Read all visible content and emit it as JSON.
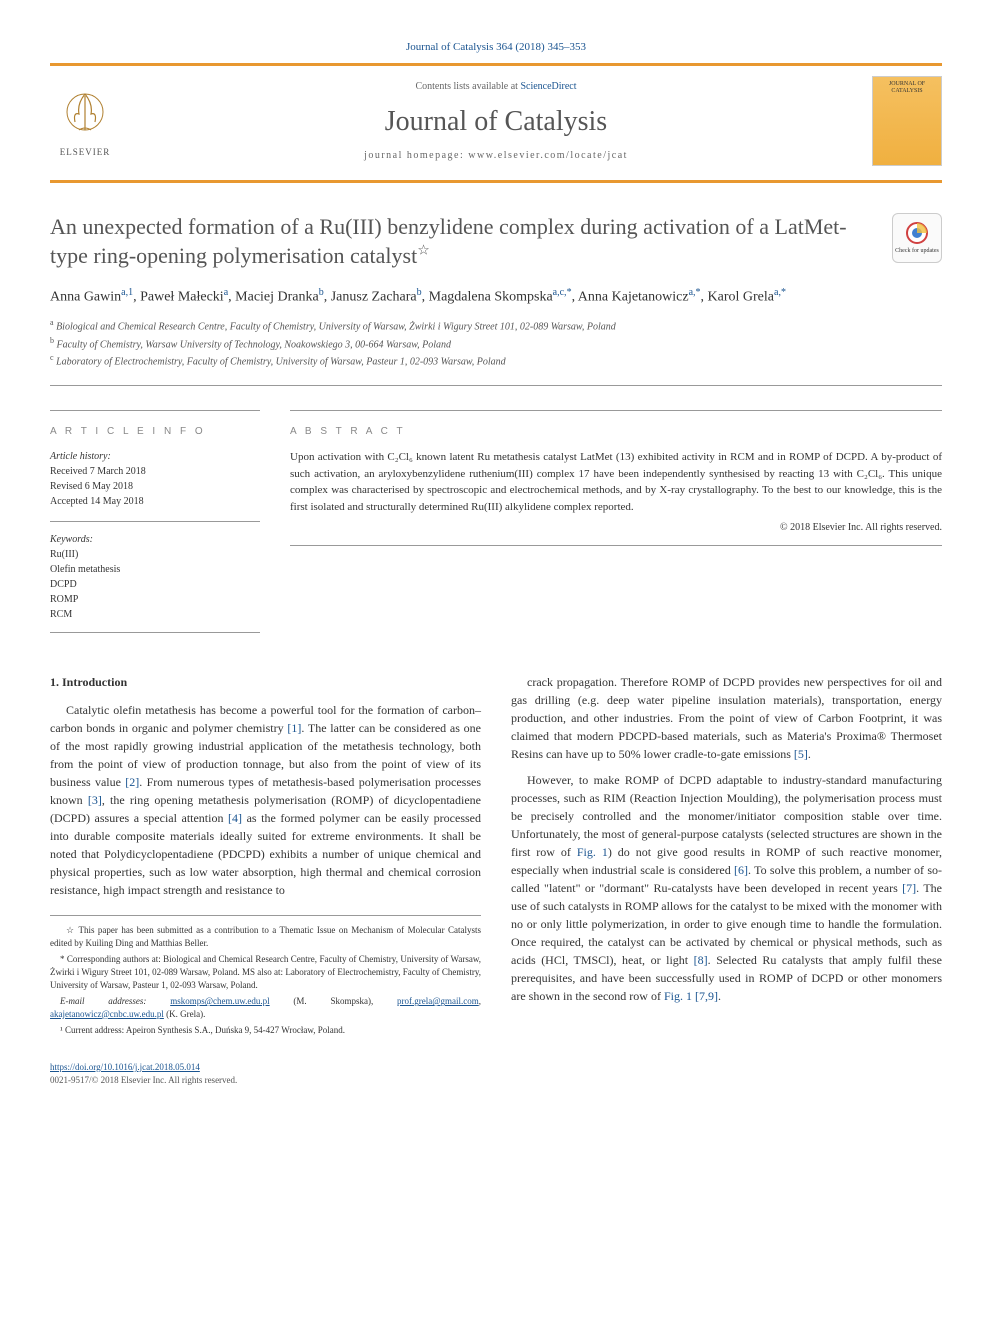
{
  "citation": "Journal of Catalysis 364 (2018) 345–353",
  "header": {
    "contents_prefix": "Contents lists available at ",
    "contents_link": "ScienceDirect",
    "journal_name": "Journal of Catalysis",
    "homepage_prefix": "journal homepage: ",
    "homepage_url": "www.elsevier.com/locate/jcat",
    "publisher": "ELSEVIER",
    "cover_label_top": "JOURNAL OF",
    "cover_label_bottom": "CATALYSIS"
  },
  "check_updates": "Check for updates",
  "title": "An unexpected formation of a Ru(III) benzylidene complex during activation of a LatMet-type ring-opening polymerisation catalyst",
  "title_star": "☆",
  "authors_html": "Anna Gawin<sup>a,1</sup>, Paweł Małecki<sup>a</sup>, Maciej Dranka<sup>b</sup>, Janusz Zachara<sup>b</sup>, Magdalena Skompska<sup>a,c,*</sup>, Anna Kajetanowicz<sup>a,*</sup>, Karol Grela<sup>a,*</sup>",
  "affiliations": [
    {
      "sup": "a",
      "text": "Biological and Chemical Research Centre, Faculty of Chemistry, University of Warsaw, Żwirki i Wigury Street 101, 02-089 Warsaw, Poland"
    },
    {
      "sup": "b",
      "text": "Faculty of Chemistry, Warsaw University of Technology, Noakowskiego 3, 00-664 Warsaw, Poland"
    },
    {
      "sup": "c",
      "text": "Laboratory of Electrochemistry, Faculty of Chemistry, University of Warsaw, Pasteur 1, 02-093 Warsaw, Poland"
    }
  ],
  "article_info": {
    "heading": "A R T I C L E   I N F O",
    "history_label": "Article history:",
    "history": [
      "Received 7 March 2018",
      "Revised 6 May 2018",
      "Accepted 14 May 2018"
    ],
    "keywords_label": "Keywords:",
    "keywords": [
      "Ru(III)",
      "Olefin metathesis",
      "DCPD",
      "ROMP",
      "RCM"
    ]
  },
  "abstract": {
    "heading": "A B S T R A C T",
    "text": "Upon activation with C₂Cl₆ known latent Ru metathesis catalyst LatMet (13) exhibited activity in RCM and in ROMP of DCPD. A by-product of such activation, an aryloxybenzylidene ruthenium(III) complex 17 have been independently synthesised by reacting 13 with C₂Cl₆. This unique complex was characterised by spectroscopic and electrochemical methods, and by X-ray crystallography. To the best to our knowledge, this is the first isolated and structurally determined Ru(III) alkylidene complex reported.",
    "copyright": "© 2018 Elsevier Inc. All rights reserved."
  },
  "section1": {
    "title": "1. Introduction",
    "p1": "Catalytic olefin metathesis has become a powerful tool for the formation of carbon–carbon bonds in organic and polymer chemistry [1]. The latter can be considered as one of the most rapidly growing industrial application of the metathesis technology, both from the point of view of production tonnage, but also from the point of view of its business value [2]. From numerous types of metathesis-based polymerisation processes known [3], the ring opening metathesis polymerisation (ROMP) of dicyclopentadiene (DCPD) assures a special attention [4] as the formed polymer can be easily processed into durable composite materials ideally suited for extreme environments. It shall be noted that Polydicyclopentadiene (PDCPD) exhibits a number of unique chemical and physical properties, such as low water absorption, high thermal and chemical corrosion resistance, high impact strength and resistance to",
    "p2": "crack propagation. Therefore ROMP of DCPD provides new perspectives for oil and gas drilling (e.g. deep water pipeline insulation materials), transportation, energy production, and other industries. From the point of view of Carbon Footprint, it was claimed that modern PDCPD-based materials, such as Materia's Proxima® Thermoset Resins can have up to 50% lower cradle-to-gate emissions [5].",
    "p3": "However, to make ROMP of DCPD adaptable to industry-standard manufacturing processes, such as RIM (Reaction Injection Moulding), the polymerisation process must be precisely controlled and the monomer/initiator composition stable over time. Unfortunately, the most of general-purpose catalysts (selected structures are shown in the first row of Fig. 1) do not give good results in ROMP of such reactive monomer, especially when industrial scale is considered [6]. To solve this problem, a number of so-called \"latent\" or \"dormant\" Ru-catalysts have been developed in recent years [7]. The use of such catalysts in ROMP allows for the catalyst to be mixed with the monomer with no or only little polymerization, in order to give enough time to handle the formulation. Once required, the catalyst can be activated by chemical or physical methods, such as acids (HCl, TMSCl), heat, or light [8]. Selected Ru catalysts that amply fulfil these prerequisites, and have been successfully used in ROMP of DCPD or other monomers are shown in the second row of Fig. 1 [7,9]."
  },
  "footnotes": {
    "star": "☆ This paper has been submitted as a contribution to a Thematic Issue on Mechanism of Molecular Catalysts edited by Kuiling Ding and Matthias Beller.",
    "corr": "* Corresponding authors at: Biological and Chemical Research Centre, Faculty of Chemistry, University of Warsaw, Żwirki i Wigury Street 101, 02-089 Warsaw, Poland. MS also at: Laboratory of Electrochemistry, Faculty of Chemistry, University of Warsaw, Pasteur 1, 02-093 Warsaw, Poland.",
    "email_label": "E-mail addresses: ",
    "emails": [
      {
        "addr": "mskomps@chem.uw.edu.pl",
        "who": " (M. Skompska), "
      },
      {
        "addr": "prof.grela@gmail.com",
        "who": ", "
      },
      {
        "addr": "akajetanowicz@cnbc.uw.edu.pl",
        "who": " (K. Grela)."
      }
    ],
    "note1": "¹ Current address: Apeiron Synthesis S.A., Duńska 9, 54-427 Wrocław, Poland."
  },
  "doi": {
    "url": "https://doi.org/10.1016/j.jcat.2018.05.014",
    "issn_line": "0021-9517/© 2018 Elsevier Inc. All rights reserved."
  },
  "refs": {
    "1": "[1]",
    "2": "[2]",
    "3": "[3]",
    "4": "[4]",
    "5": "[5]",
    "6": "[6]",
    "7": "[7]",
    "8": "[8]",
    "79": "[7,9]",
    "fig1": "Fig. 1"
  },
  "colors": {
    "orange_rule": "#e89830",
    "link_blue": "#1a5490",
    "heading_grey": "#555555"
  }
}
